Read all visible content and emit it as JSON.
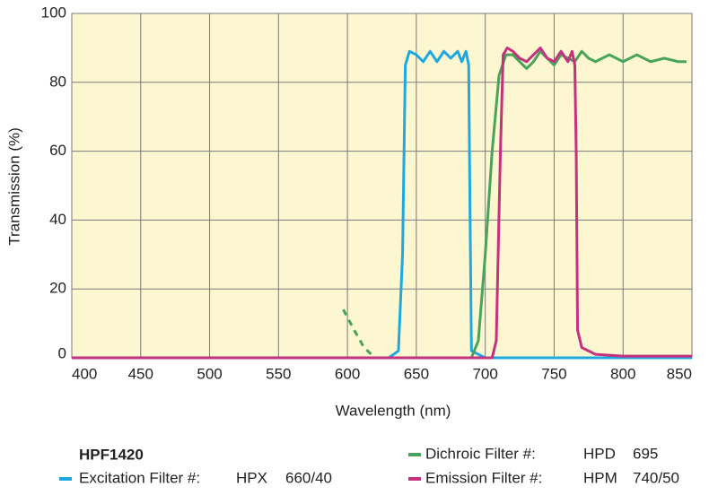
{
  "chart_data": {
    "type": "line",
    "title": "HPF1420",
    "x_label": "Wavelength (nm)",
    "y_label": "Transmission (%)",
    "xlim": [
      400,
      850
    ],
    "ylim": [
      0,
      100
    ],
    "xticks": [
      400,
      450,
      500,
      550,
      600,
      650,
      700,
      750,
      800,
      850
    ],
    "yticks": [
      0,
      20,
      40,
      60,
      80,
      100
    ],
    "grid": true,
    "plot_background": "#fcf7d0",
    "series": [
      {
        "name": "Excitation Filter #:",
        "part": "HPX",
        "spec": "660/40",
        "color": "#1fa8e0",
        "line_styles": [
          "solid"
        ],
        "x": [
          400,
          630,
          637,
          640,
          642,
          645,
          650,
          655,
          660,
          665,
          670,
          675,
          680,
          683,
          686,
          688,
          689,
          690,
          700,
          850
        ],
        "values": [
          0,
          0,
          2,
          30,
          85,
          89,
          88,
          86,
          89,
          86,
          89,
          87,
          89,
          86,
          89,
          85,
          40,
          2,
          0,
          0
        ]
      },
      {
        "name": "Dichroic Filter #:",
        "part": "HPD",
        "spec": "695",
        "color": "#4aa35a",
        "line_styles": [
          "dashed",
          "solid"
        ],
        "x": [
          597,
          605,
          612,
          620,
          null,
          650,
          690,
          695,
          700,
          705,
          710,
          715,
          720,
          725,
          730,
          735,
          740,
          745,
          750,
          755,
          760,
          765,
          770,
          775,
          780,
          790,
          800,
          810,
          820,
          830,
          840,
          846
        ],
        "values": [
          14,
          8,
          3,
          0,
          null,
          0,
          0,
          5,
          30,
          60,
          82,
          88,
          88,
          86,
          84,
          86,
          89,
          87,
          85,
          88,
          87,
          86,
          89,
          87,
          86,
          88,
          86,
          88,
          86,
          87,
          86,
          86
        ]
      },
      {
        "name": "Emission Filter #:",
        "part": "HPM",
        "spec": "740/50",
        "color": "#c4317f",
        "line_styles": [
          "solid"
        ],
        "x": [
          400,
          705,
          708,
          711,
          713,
          716,
          720,
          725,
          730,
          735,
          740,
          745,
          750,
          755,
          760,
          763,
          765,
          766,
          767,
          770,
          780,
          800,
          850
        ],
        "values": [
          0,
          0,
          5,
          60,
          88,
          90,
          89,
          87,
          86,
          88,
          90,
          87,
          86,
          89,
          86,
          89,
          85,
          60,
          8,
          3,
          1,
          0.5,
          0.5
        ]
      }
    ]
  }
}
